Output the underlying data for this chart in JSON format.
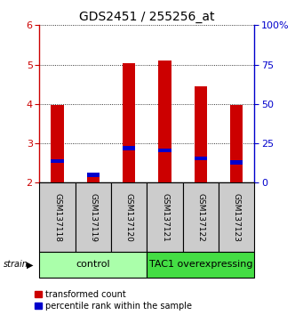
{
  "title": "GDS2451 / 255256_at",
  "samples": [
    "GSM137118",
    "GSM137119",
    "GSM137120",
    "GSM137121",
    "GSM137122",
    "GSM137123"
  ],
  "red_values": [
    3.97,
    2.18,
    5.03,
    5.1,
    4.45,
    3.98
  ],
  "blue_values": [
    2.55,
    2.2,
    2.88,
    2.82,
    2.62,
    2.52
  ],
  "y_min": 2.0,
  "y_max": 6.0,
  "y_ticks_left": [
    2,
    3,
    4,
    5,
    6
  ],
  "y_ticks_right": [
    0,
    25,
    50,
    75,
    100
  ],
  "bar_width": 0.35,
  "bar_color_red": "#cc0000",
  "bar_color_blue": "#0000cc",
  "groups": [
    {
      "label": "control",
      "indices": [
        0,
        1,
        2
      ]
    },
    {
      "label": "TAC1 overexpressing",
      "indices": [
        3,
        4,
        5
      ]
    }
  ],
  "group_colors": [
    "#aaffaa",
    "#44dd44"
  ],
  "sample_area_color": "#cccccc",
  "legend_red_label": "transformed count",
  "legend_blue_label": "percentile rank within the sample",
  "strain_label": "strain",
  "title_fontsize": 10,
  "tick_fontsize": 8,
  "sample_fontsize": 6.5,
  "group_fontsize": 8,
  "legend_fontsize": 7,
  "axis_color_left": "#cc0000",
  "axis_color_right": "#0000cc"
}
